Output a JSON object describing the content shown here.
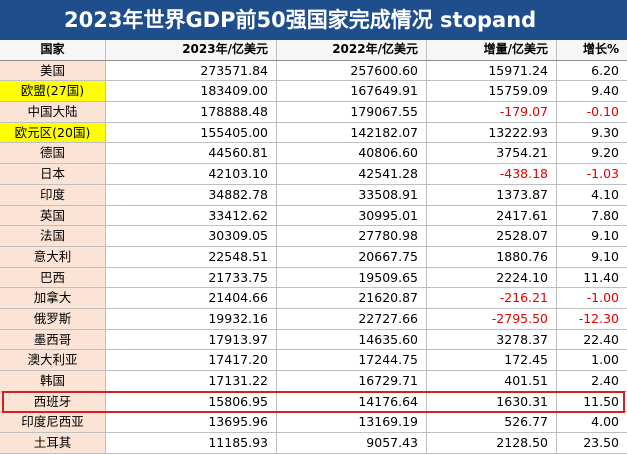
{
  "title": "2023年世界GDP前50强国家完成情况 stopand",
  "headers": [
    "国家",
    "2023年/亿美元",
    "2022年/亿美元",
    "增量/亿美元",
    "增长%"
  ],
  "rows": [
    {
      "country": "美国",
      "y2023": "273571.84",
      "y2022": "257600.60",
      "delta": "15971.24",
      "growth": "6.20",
      "neg": false,
      "hl": false
    },
    {
      "country": "欧盟(27国)",
      "y2023": "183409.00",
      "y2022": "167649.91",
      "delta": "15759.09",
      "growth": "9.40",
      "neg": false,
      "hl": true
    },
    {
      "country": "中国大陆",
      "y2023": "178888.48",
      "y2022": "179067.55",
      "delta": "-179.07",
      "growth": "-0.10",
      "neg": true,
      "hl": false
    },
    {
      "country": "欧元区(20国)",
      "y2023": "155405.00",
      "y2022": "142182.07",
      "delta": "13222.93",
      "growth": "9.30",
      "neg": false,
      "hl": true
    },
    {
      "country": "德国",
      "y2023": "44560.81",
      "y2022": "40806.60",
      "delta": "3754.21",
      "growth": "9.20",
      "neg": false,
      "hl": false
    },
    {
      "country": "日本",
      "y2023": "42103.10",
      "y2022": "42541.28",
      "delta": "-438.18",
      "growth": "-1.03",
      "neg": true,
      "hl": false
    },
    {
      "country": "印度",
      "y2023": "34882.78",
      "y2022": "33508.91",
      "delta": "1373.87",
      "growth": "4.10",
      "neg": false,
      "hl": false
    },
    {
      "country": "英国",
      "y2023": "33412.62",
      "y2022": "30995.01",
      "delta": "2417.61",
      "growth": "7.80",
      "neg": false,
      "hl": false
    },
    {
      "country": "法国",
      "y2023": "30309.05",
      "y2022": "27780.98",
      "delta": "2528.07",
      "growth": "9.10",
      "neg": false,
      "hl": false
    },
    {
      "country": "意大利",
      "y2023": "22548.51",
      "y2022": "20667.75",
      "delta": "1880.76",
      "growth": "9.10",
      "neg": false,
      "hl": false
    },
    {
      "country": "巴西",
      "y2023": "21733.75",
      "y2022": "19509.65",
      "delta": "2224.10",
      "growth": "11.40",
      "neg": false,
      "hl": false
    },
    {
      "country": "加拿大",
      "y2023": "21404.66",
      "y2022": "21620.87",
      "delta": "-216.21",
      "growth": "-1.00",
      "neg": true,
      "hl": false
    },
    {
      "country": "俄罗斯",
      "y2023": "19932.16",
      "y2022": "22727.66",
      "delta": "-2795.50",
      "growth": "-12.30",
      "neg": true,
      "hl": false
    },
    {
      "country": "墨西哥",
      "y2023": "17913.97",
      "y2022": "14635.60",
      "delta": "3278.37",
      "growth": "22.40",
      "neg": false,
      "hl": false
    },
    {
      "country": "澳大利亚",
      "y2023": "17417.20",
      "y2022": "17244.75",
      "delta": "172.45",
      "growth": "1.00",
      "neg": false,
      "hl": false
    },
    {
      "country": "韩国",
      "y2023": "17131.22",
      "y2022": "16729.71",
      "delta": "401.51",
      "growth": "2.40",
      "neg": false,
      "hl": false
    },
    {
      "country": "西班牙",
      "y2023": "15806.95",
      "y2022": "14176.64",
      "delta": "1630.31",
      "growth": "11.50",
      "neg": false,
      "hl": false
    },
    {
      "country": "印度尼西亚",
      "y2023": "13695.96",
      "y2022": "13169.19",
      "delta": "526.77",
      "growth": "4.00",
      "neg": false,
      "hl": false
    },
    {
      "country": "土耳其",
      "y2023": "11185.93",
      "y2022": "9057.43",
      "delta": "2128.50",
      "growth": "23.50",
      "neg": false,
      "hl": false
    }
  ],
  "highlighted_row": "西班牙"
}
